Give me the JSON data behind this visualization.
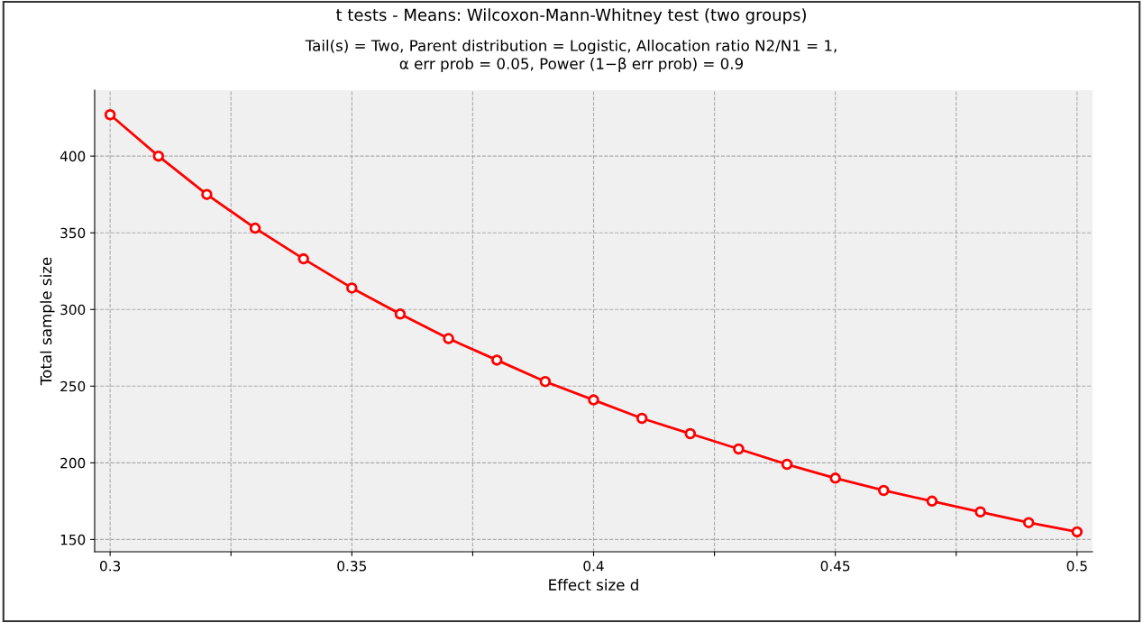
{
  "chart_data": {
    "type": "line",
    "title": "t tests - Means: Wilcoxon-Mann-Whitney test (two groups)",
    "subtitle": "Tail(s) = Two, Parent distribution = Logistic, Allocation ratio N2/N1 = 1,\nα err prob = 0.05, Power (1−β err prob) = 0.9",
    "xlabel": "Effect size d",
    "ylabel": "Total sample size",
    "x": [
      0.3,
      0.31,
      0.32,
      0.33,
      0.34,
      0.35,
      0.36,
      0.37,
      0.38,
      0.39,
      0.4,
      0.41,
      0.42,
      0.43,
      0.44,
      0.45,
      0.46,
      0.47,
      0.48,
      0.49,
      0.5
    ],
    "series": [
      {
        "color": "#ff0000",
        "values": [
          427,
          400,
          375,
          353,
          333,
          314,
          297,
          281,
          267,
          253,
          241,
          229,
          219,
          209,
          199,
          190,
          182,
          175,
          168,
          161,
          155
        ]
      }
    ],
    "xlim": [
      0.2968,
      0.5032
    ],
    "ylim": [
      142,
      443
    ],
    "xticks": [
      0.3,
      {
        "value": 0.325,
        "label": null
      },
      0.35,
      {
        "value": 0.375,
        "label": null
      },
      0.4,
      {
        "value": 0.425,
        "label": null
      },
      0.45,
      {
        "value": 0.475,
        "label": null
      },
      0.5
    ],
    "yticks": [
      150,
      200,
      250,
      300,
      350,
      400
    ],
    "grid": true,
    "marker": "circle",
    "line_style": "solid",
    "legend": false
  }
}
